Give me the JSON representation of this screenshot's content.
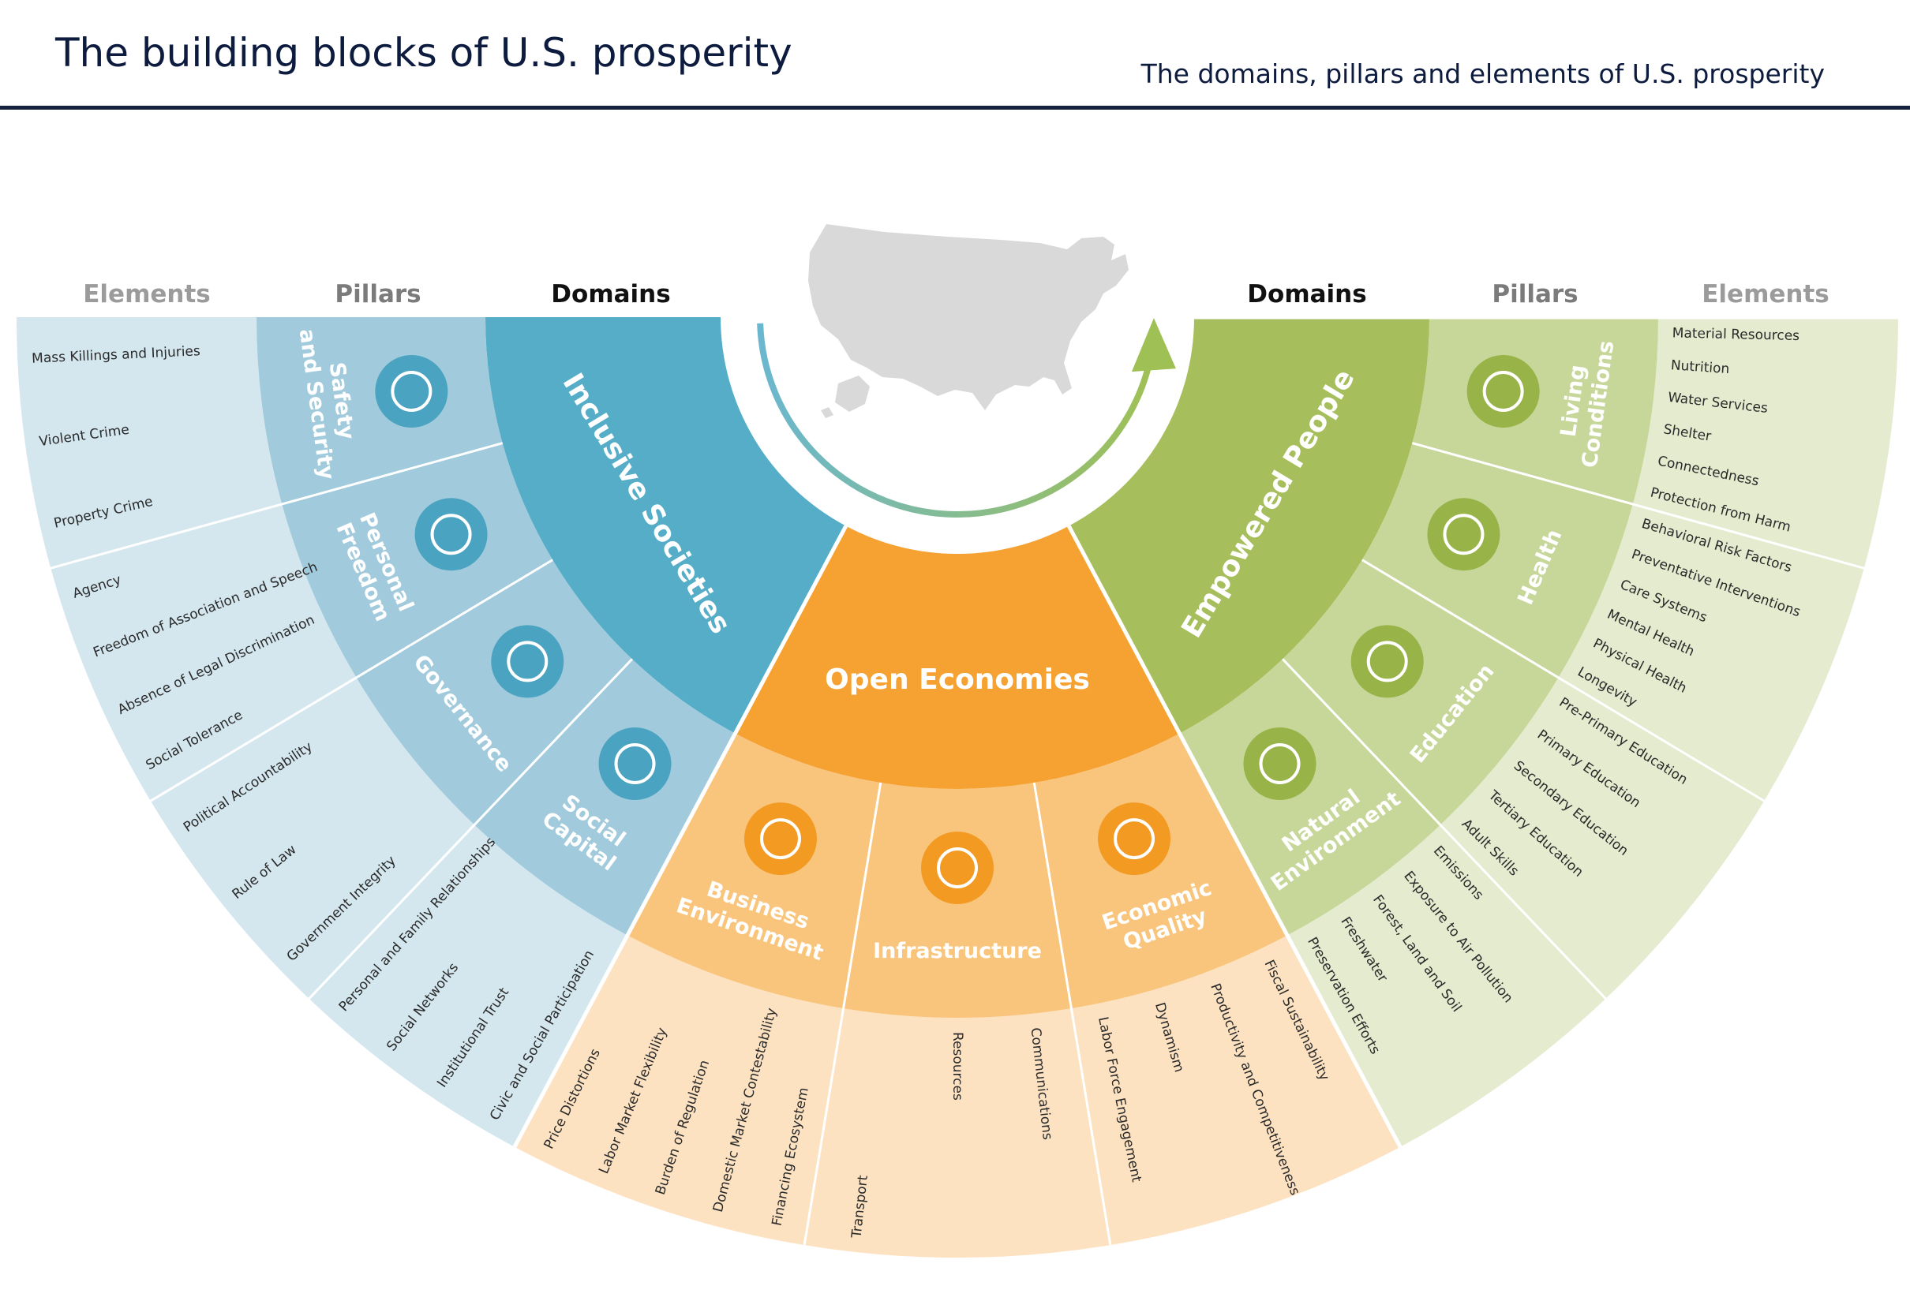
{
  "header": {
    "title": "The building blocks of U.S. prosperity",
    "subtitle": "The domains, pillars and elements of U.S. prosperity"
  },
  "column_headers": {
    "left": {
      "elements": "Elements",
      "pillars": "Pillars",
      "domains": "Domains"
    },
    "right": {
      "domains": "Domains",
      "pillars": "Pillars",
      "elements": "Elements"
    }
  },
  "colors": {
    "inclusive_domain": "#55adc8",
    "inclusive_pillar": "#a1cbdc",
    "inclusive_element": "#d4e7ef",
    "inclusive_icon": "#4aa3c1",
    "open_domain": "#f5a233",
    "open_pillar": "#f9c57c",
    "open_element": "#fde2c2",
    "open_icon": "#f39a22",
    "empowered_domain": "#a6be5b",
    "empowered_pillar": "#c7d79a",
    "empowered_element": "#e4ebcf",
    "empowered_icon": "#98b348",
    "map": "#d9d9d9",
    "arrow_start": "#6ab7cf",
    "arrow_end": "#9fc054"
  },
  "domains": [
    {
      "name": "Inclusive Societies",
      "pillars": [
        {
          "name": "Safety and Security",
          "lines": [
            "Safety",
            "and Security"
          ],
          "icon": "shield-icon",
          "elements": [
            "Mass Killings and Injuries",
            "Violent Crime",
            "Property Crime"
          ]
        },
        {
          "name": "Personal Freedom",
          "lines": [
            "Personal",
            "Freedom"
          ],
          "icon": "freedom-runner-icon",
          "elements": [
            "Agency",
            "Freedom of Association and Speech",
            "Absence of Legal Discrimination",
            "Social Tolerance"
          ]
        },
        {
          "name": "Governance",
          "lines": [
            "Governance"
          ],
          "icon": "government-building-icon",
          "elements": [
            "Political Accountability",
            "Rule of Law",
            "Government Integrity"
          ]
        },
        {
          "name": "Social Capital",
          "lines": [
            "Social",
            "Capital"
          ],
          "icon": "people-group-icon",
          "elements": [
            "Personal and Family Relationships",
            "Social Networks",
            "Institutional Trust",
            "Civic and Social Participation"
          ]
        }
      ]
    },
    {
      "name": "Open Economies",
      "pillars": [
        {
          "name": "Business Environment",
          "lines": [
            "Business",
            "Environment"
          ],
          "icon": "briefcase-icon",
          "elements": [
            "Financing Ecosystem",
            "Domestic Market Contestability",
            "Burden of Regulation",
            "Labor Market Flexibility",
            "Price Distortions"
          ]
        },
        {
          "name": "Infrastructure",
          "lines": [
            "Infrastructure"
          ],
          "icon": "money-bag-icon",
          "elements": [
            "Communications",
            "Resources",
            "Transport"
          ]
        },
        {
          "name": "Economic Quality",
          "lines": [
            "Economic",
            "Quality"
          ],
          "icon": "dollar-clock-icon",
          "elements": [
            "Fiscal Sustainability",
            "Productivity and Competitiveness",
            "Dynamism",
            "Labor Force Engagement"
          ]
        }
      ]
    },
    {
      "name": "Empowered People",
      "pillars": [
        {
          "name": "Living Conditions",
          "lines": [
            "Living",
            "Conditions"
          ],
          "icon": "house-icon",
          "elements": [
            "Material Resources",
            "Nutrition",
            "Water Services",
            "Shelter",
            "Connectedness",
            "Protection from Harm"
          ]
        },
        {
          "name": "Health",
          "lines": [
            "Health"
          ],
          "icon": "health-hands-icon",
          "elements": [
            "Behavioral Risk Factors",
            "Preventative Interventions",
            "Care Systems",
            "Mental Health",
            "Physical Health",
            "Longevity"
          ]
        },
        {
          "name": "Education",
          "lines": [
            "Education"
          ],
          "icon": "graduation-cap-icon",
          "elements": [
            "Pre-Primary Education",
            "Primary Education",
            "Secondary Education",
            "Tertiary Education",
            "Adult Skills"
          ]
        },
        {
          "name": "Natural Environment",
          "lines": [
            "Natural",
            "Environment"
          ],
          "icon": "leaf-icon",
          "elements": [
            "Emissions",
            "Exposure to Air Pollution",
            "Forest, Land and Soil",
            "Freshwater",
            "Preservation Efforts"
          ]
        }
      ]
    }
  ]
}
